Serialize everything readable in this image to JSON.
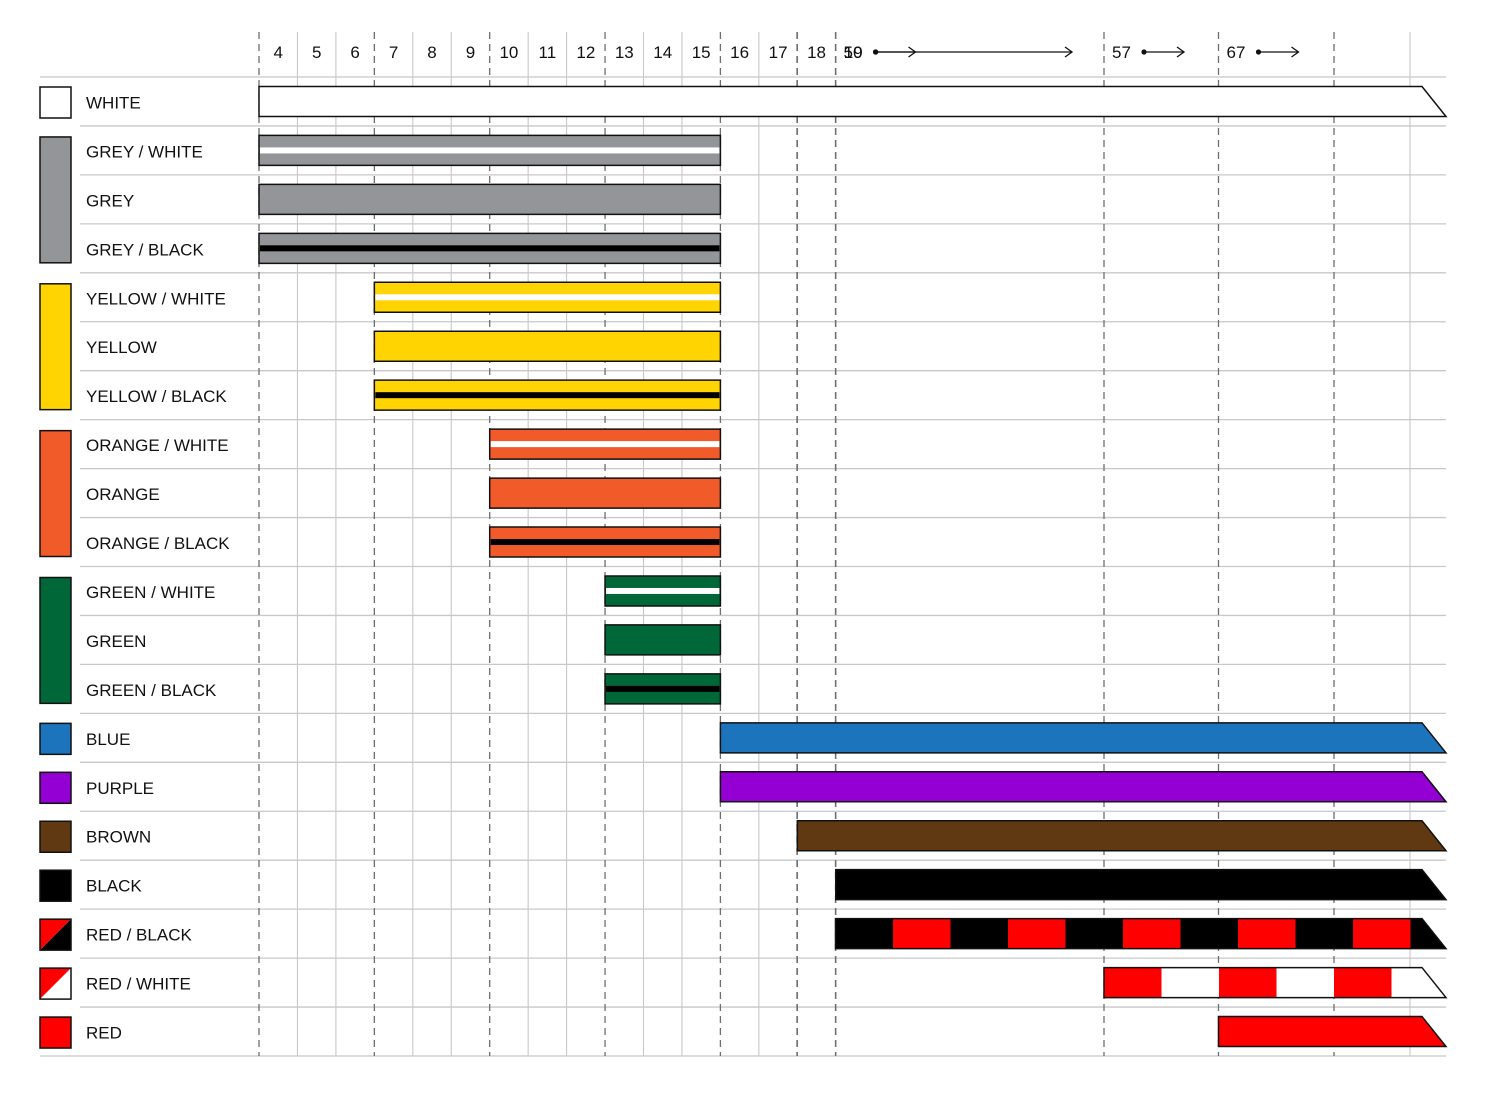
{
  "chart_data": {
    "type": "bar",
    "title": "",
    "xlabel": "",
    "ylabel": "",
    "x_ticks": [
      "4",
      "5",
      "6",
      "7",
      "8",
      "9",
      "10",
      "11",
      "12",
      "13",
      "14",
      "15",
      "16",
      "17",
      "18",
      "19",
      "50",
      "57",
      "67"
    ],
    "grid": true,
    "rows": [
      {
        "label": "WHITE",
        "start": "4",
        "end": "open",
        "color": "#ffffff",
        "stripe": null,
        "pattern": null
      },
      {
        "label": "GREY / WHITE",
        "start": "4",
        "end": "15",
        "color": "#939598",
        "stripe": "#ffffff",
        "pattern": null
      },
      {
        "label": "GREY",
        "start": "4",
        "end": "15",
        "color": "#939598",
        "stripe": null,
        "pattern": null
      },
      {
        "label": "GREY / BLACK",
        "start": "4",
        "end": "15",
        "color": "#939598",
        "stripe": "#000000",
        "pattern": null
      },
      {
        "label": "YELLOW / WHITE",
        "start": "7",
        "end": "15",
        "color": "#ffd400",
        "stripe": "#ffffff",
        "pattern": null
      },
      {
        "label": "YELLOW",
        "start": "7",
        "end": "15",
        "color": "#ffd400",
        "stripe": null,
        "pattern": null
      },
      {
        "label": "YELLOW / BLACK",
        "start": "7",
        "end": "15",
        "color": "#ffd400",
        "stripe": "#000000",
        "pattern": null
      },
      {
        "label": "ORANGE / WHITE",
        "start": "10",
        "end": "15",
        "color": "#f15a29",
        "stripe": "#ffffff",
        "pattern": null
      },
      {
        "label": "ORANGE",
        "start": "10",
        "end": "15",
        "color": "#f15a29",
        "stripe": null,
        "pattern": null
      },
      {
        "label": "ORANGE / BLACK",
        "start": "10",
        "end": "15",
        "color": "#f15a29",
        "stripe": "#000000",
        "pattern": null
      },
      {
        "label": "GREEN / WHITE",
        "start": "13",
        "end": "15",
        "color": "#006838",
        "stripe": "#ffffff",
        "pattern": null
      },
      {
        "label": "GREEN",
        "start": "13",
        "end": "15",
        "color": "#006838",
        "stripe": null,
        "pattern": null
      },
      {
        "label": "GREEN / BLACK",
        "start": "13",
        "end": "15",
        "color": "#006838",
        "stripe": "#000000",
        "pattern": null
      },
      {
        "label": "BLUE",
        "start": "16",
        "end": "open",
        "color": "#1c75bc",
        "stripe": null,
        "pattern": null
      },
      {
        "label": "PURPLE",
        "start": "16",
        "end": "open",
        "color": "#9400d3",
        "stripe": null,
        "pattern": null
      },
      {
        "label": "BROWN",
        "start": "18",
        "end": "open",
        "color": "#603913",
        "stripe": null,
        "pattern": null
      },
      {
        "label": "BLACK",
        "start": "19",
        "end": "open",
        "color": "#000000",
        "stripe": null,
        "pattern": null
      },
      {
        "label": "RED / BLACK",
        "start": "50",
        "end": "open",
        "color": "#000000",
        "stripe": null,
        "pattern": [
          "#000000",
          "#ff0000"
        ]
      },
      {
        "label": "RED / WHITE",
        "start": "57",
        "end": "open",
        "color": "#ff0000",
        "stripe": null,
        "pattern": [
          "#ff0000",
          "#ffffff"
        ]
      },
      {
        "label": "RED",
        "start": "67",
        "end": "open",
        "color": "#ff0000",
        "stripe": null,
        "pattern": null
      }
    ]
  }
}
